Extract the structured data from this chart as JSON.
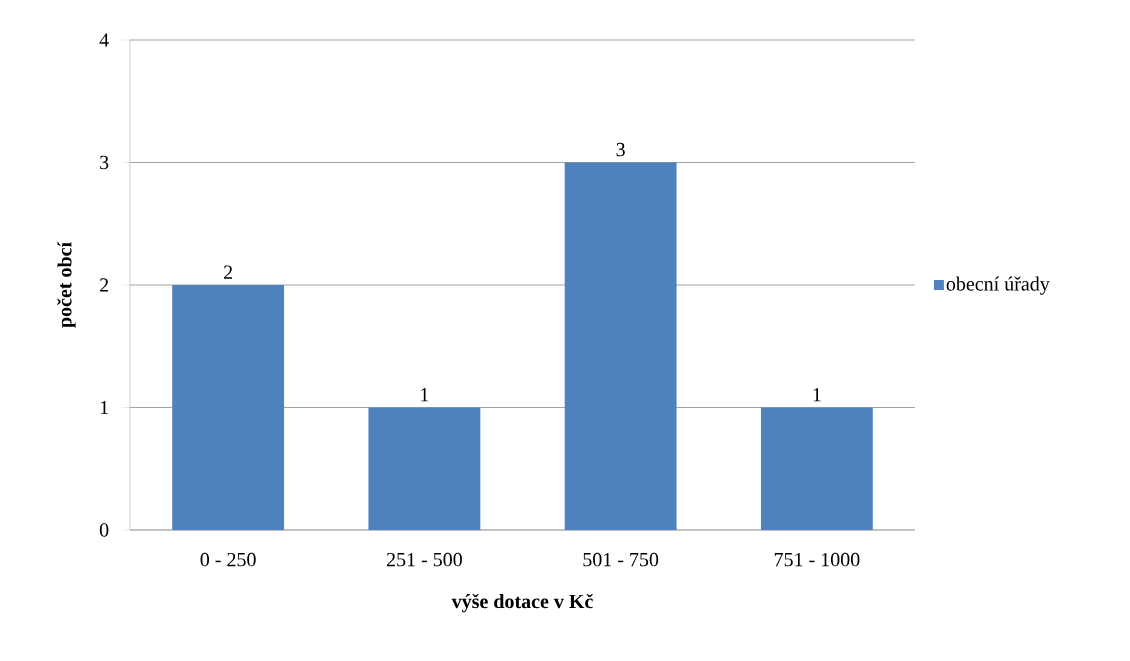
{
  "chart_data": {
    "type": "bar",
    "xlabel": "výše dotace v Kč",
    "ylabel": "počet obcí",
    "categories": [
      "0 - 250",
      "251 - 500",
      "501 - 750",
      "751 - 1000"
    ],
    "series": [
      {
        "name": "obecní úřady",
        "color": "#4f81bd",
        "values": [
          2,
          1,
          3,
          1
        ]
      }
    ],
    "ylim": [
      0,
      4
    ],
    "yticks": [
      0,
      1,
      2,
      3,
      4
    ],
    "grid": "y",
    "legend": "right",
    "data_labels": true
  }
}
